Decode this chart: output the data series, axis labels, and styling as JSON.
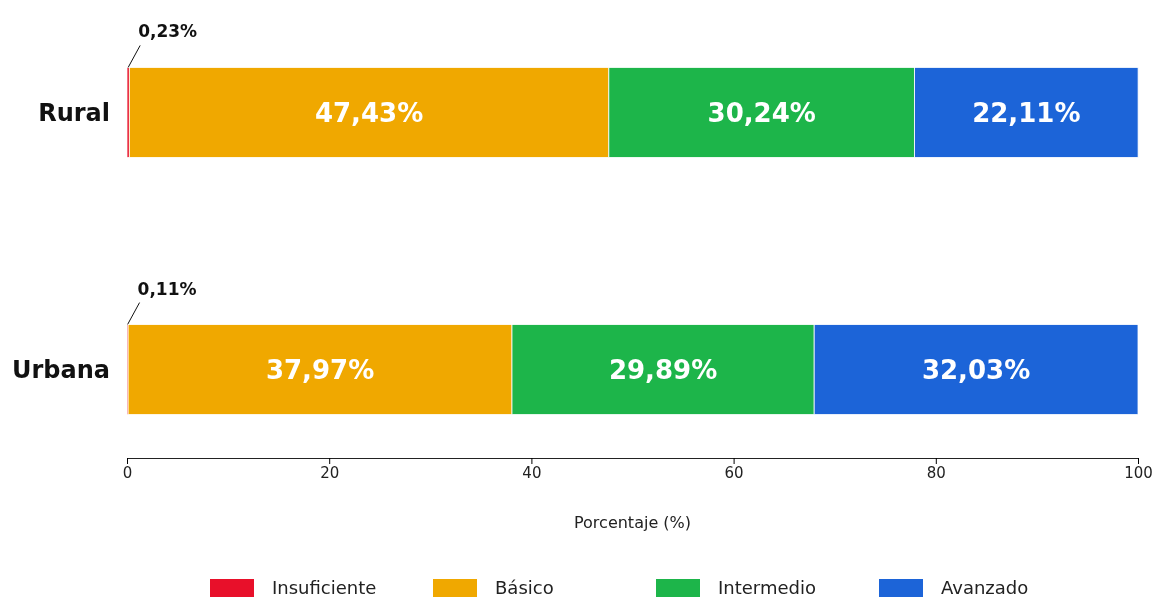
{
  "chart_data": {
    "type": "bar",
    "orientation": "horizontal",
    "stacked": true,
    "categories": [
      "Rural",
      "Urbana"
    ],
    "xlabel": "Porcentaje (%)",
    "xlim": [
      0,
      100
    ],
    "xticks": [
      0,
      20,
      40,
      60,
      80,
      100
    ],
    "grid": false,
    "legend": "bottom",
    "series": [
      {
        "name": "Insuficiente",
        "color": "#e8102a",
        "values": [
          0.23,
          0.11
        ],
        "value_labels": [
          "0,23%",
          "0,11%"
        ]
      },
      {
        "name": "Básico",
        "color": "#f0a800",
        "values": [
          47.43,
          37.97
        ],
        "value_labels": [
          "47,43%",
          "37,97%"
        ]
      },
      {
        "name": "Intermedio",
        "color": "#1db54a",
        "values": [
          30.24,
          29.89
        ],
        "value_labels": [
          "30,24%",
          "29,89%"
        ]
      },
      {
        "name": "Avanzado",
        "color": "#1c64d8",
        "values": [
          22.11,
          32.03
        ],
        "value_labels": [
          "22,11%",
          "32,03%"
        ]
      }
    ]
  }
}
